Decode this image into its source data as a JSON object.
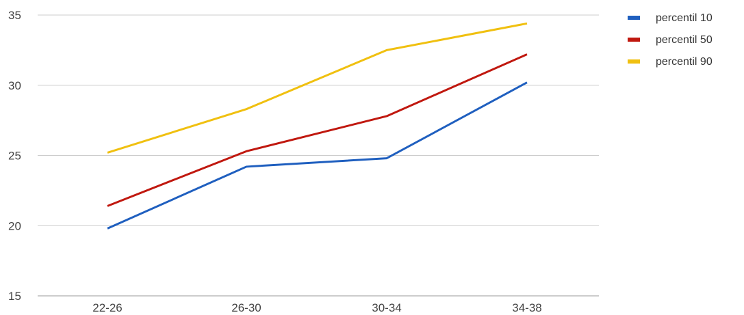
{
  "chart_data": {
    "type": "line",
    "categories": [
      "22-26",
      "26-30",
      "30-34",
      "34-38"
    ],
    "series": [
      {
        "name": "percentil 10",
        "values": [
          19.8,
          24.2,
          24.8,
          30.2
        ],
        "color": "#1f5fbf"
      },
      {
        "name": "percentil 50",
        "values": [
          21.4,
          25.3,
          27.8,
          32.2
        ],
        "color": "#c0180f"
      },
      {
        "name": "percentil 90",
        "values": [
          25.2,
          28.3,
          32.5,
          34.4
        ],
        "color": "#f0c010"
      }
    ],
    "yticks": [
      15,
      20,
      25,
      30,
      35
    ],
    "ylim": [
      15,
      35
    ],
    "grid": true,
    "legend": "top-right"
  }
}
